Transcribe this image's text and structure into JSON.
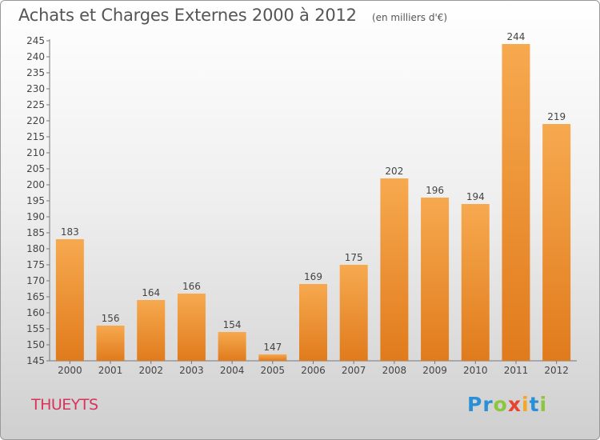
{
  "title": "Achats et Charges Externes 2000 à 2012",
  "units": "(en milliers d'€)",
  "commune": "THUEYTS",
  "logo": {
    "letters": [
      {
        "char": "P",
        "color": "#2b8fd6"
      },
      {
        "char": "r",
        "color": "#2b8fd6"
      },
      {
        "char": "o",
        "color": "#8cc63f"
      },
      {
        "char": "x",
        "color": "#e8432e"
      },
      {
        "char": "i",
        "color": "#f5a623"
      },
      {
        "char": "t",
        "color": "#2b8fd6"
      },
      {
        "char": "i",
        "color": "#8cc63f"
      }
    ]
  },
  "colors": {
    "bar_light": "#f7a94f",
    "bar_dark": "#e07b1c",
    "commune": "#d8345a",
    "text": "#444444"
  },
  "chart_data": {
    "type": "bar",
    "title": "Achats et Charges Externes 2000 à 2012",
    "subtitle": "(en milliers d'€)",
    "categories": [
      "2000",
      "2001",
      "2002",
      "2003",
      "2004",
      "2005",
      "2006",
      "2007",
      "2008",
      "2009",
      "2010",
      "2011",
      "2012"
    ],
    "values": [
      183,
      156,
      164,
      166,
      154,
      147,
      169,
      175,
      202,
      196,
      194,
      244,
      219
    ],
    "ylim": [
      145,
      245
    ],
    "yticks": [
      145,
      150,
      155,
      160,
      165,
      170,
      175,
      180,
      185,
      190,
      195,
      200,
      205,
      210,
      215,
      220,
      225,
      230,
      235,
      240,
      245
    ],
    "xlabel": "",
    "ylabel": "",
    "grid": false,
    "data_labels": true
  }
}
